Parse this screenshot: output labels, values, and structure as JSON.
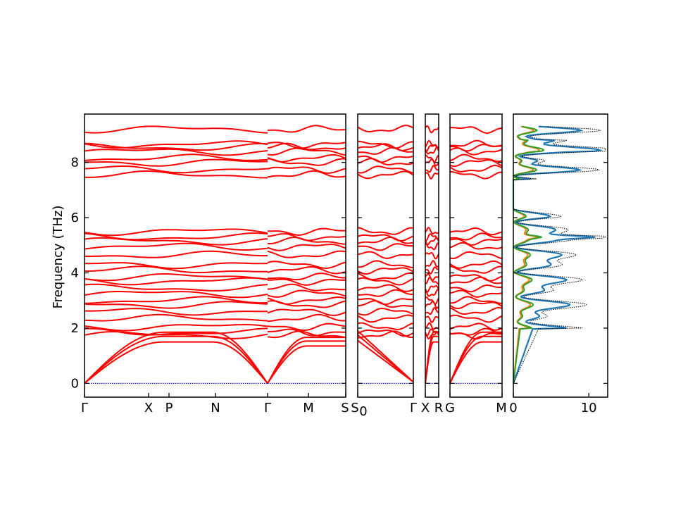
{
  "chart_data": {
    "type": "line",
    "ylabel": "Frequency (THz)",
    "ylim": [
      -0.5,
      9.75
    ],
    "yticks": [
      0,
      2,
      4,
      6,
      8
    ],
    "dos_xticks": [
      0,
      10
    ],
    "dos_xlim": [
      0,
      12.5
    ],
    "band_color": "#ff0000",
    "zero_line_color": "#0000cd",
    "segments": [
      {
        "x_start_label": "Γ",
        "labels": [
          "Γ",
          "X",
          "P",
          "N",
          "Γ"
        ],
        "label_positions": [
          0,
          0.35,
          0.465,
          0.72,
          1.0
        ]
      },
      {
        "labels": [
          "Γ",
          "M",
          "S"
        ],
        "label_positions": [
          0,
          0.5,
          1.0
        ]
      },
      {
        "labels": [
          "S₀",
          "Γ"
        ],
        "label_positions": [
          0,
          1.0
        ]
      },
      {
        "labels": [
          "X",
          "R"
        ],
        "label_positions": [
          0,
          1.0
        ]
      },
      {
        "labels": [
          "G",
          "M"
        ],
        "label_positions": [
          0,
          1.0
        ]
      }
    ],
    "panel_labels": [
      "Γ",
      "X",
      "P",
      "N",
      "Γ",
      "M",
      "S",
      "S",
      "0",
      "Γ",
      "X",
      "R",
      "G",
      "M"
    ],
    "band_levels_low": [
      1.75,
      1.85,
      2.05,
      2.35,
      2.6,
      2.85,
      3.0,
      3.25,
      3.45,
      3.7,
      3.85,
      4.1,
      4.3,
      4.65,
      4.95,
      5.15,
      5.3,
      5.5
    ],
    "band_levels_high": [
      7.55,
      7.75,
      8.0,
      8.15,
      8.4,
      8.55,
      8.65,
      9.2
    ],
    "dos_series": [
      {
        "color": "#1f77b4"
      },
      {
        "color": "#ff7f0e"
      },
      {
        "color": "#2ca02c"
      },
      {
        "color": "#000000"
      }
    ]
  }
}
